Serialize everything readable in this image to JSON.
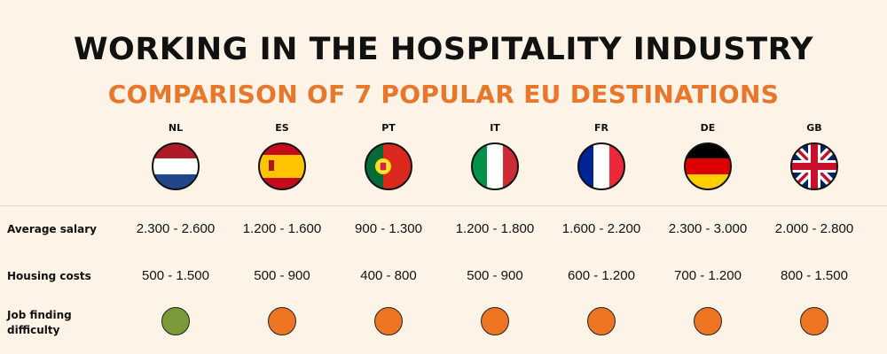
{
  "header": {
    "title": "WORKING IN THE HOSPITALITY INDUSTRY",
    "subtitle": "COMPARISON OF 7 POPULAR EU DESTINATIONS"
  },
  "countries": [
    {
      "code": "NL",
      "flag": "netherlands-flag-icon",
      "salary": "2.300 - 2.600",
      "housing": "500 - 1.500",
      "difficulty": "#7a9a3a"
    },
    {
      "code": "ES",
      "flag": "spain-flag-icon",
      "salary": "1.200 - 1.600",
      "housing": "500 - 900",
      "difficulty": "#ee7623"
    },
    {
      "code": "PT",
      "flag": "portugal-flag-icon",
      "salary": "900 - 1.300",
      "housing": "400 - 800",
      "difficulty": "#ee7623"
    },
    {
      "code": "IT",
      "flag": "italy-flag-icon",
      "salary": "1.200 - 1.800",
      "housing": "500 - 900",
      "difficulty": "#ee7623"
    },
    {
      "code": "FR",
      "flag": "france-flag-icon",
      "salary": "1.600 - 2.200",
      "housing": "600 - 1.200",
      "difficulty": "#ee7623"
    },
    {
      "code": "DE",
      "flag": "germany-flag-icon",
      "salary": "2.300 - 3.000",
      "housing": "700 - 1.200",
      "difficulty": "#ee7623"
    },
    {
      "code": "GB",
      "flag": "united-kingdom-flag-icon",
      "salary": "2.000 - 2.800",
      "housing": "800 - 1.500",
      "difficulty": "#ee7623"
    }
  ],
  "rows": {
    "salary_label": "Average salary",
    "housing_label": "Housing costs",
    "difficulty_label_1": "Job finding",
    "difficulty_label_2": "difficulty"
  },
  "colors": {
    "accent": "#e8762b",
    "background": "#fdf3e7",
    "easy": "#7a9a3a",
    "hard": "#ee7623"
  }
}
